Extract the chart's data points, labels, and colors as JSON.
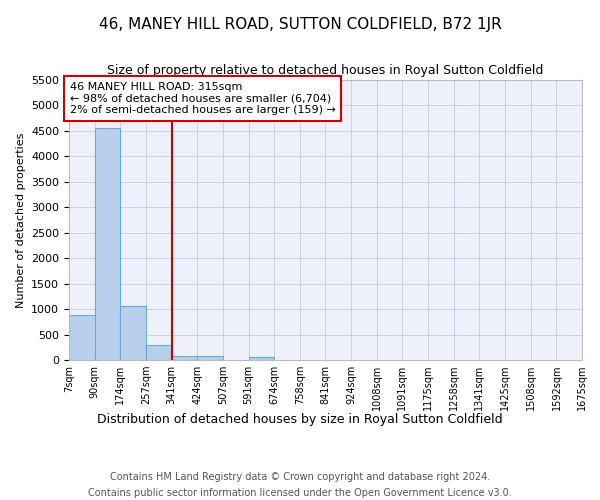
{
  "title": "46, MANEY HILL ROAD, SUTTON COLDFIELD, B72 1JR",
  "subtitle": "Size of property relative to detached houses in Royal Sutton Coldfield",
  "xlabel": "Distribution of detached houses by size in Royal Sutton Coldfield",
  "ylabel": "Number of detached properties",
  "footer_line1": "Contains HM Land Registry data © Crown copyright and database right 2024.",
  "footer_line2": "Contains public sector information licensed under the Open Government Licence v3.0.",
  "annotation_line1": "46 MANEY HILL ROAD: 315sqm",
  "annotation_line2": "← 98% of detached houses are smaller (6,704)",
  "annotation_line3": "2% of semi-detached houses are larger (159) →",
  "property_size": 315,
  "bar_edges": [
    7,
    90,
    174,
    257,
    341,
    424,
    507,
    591,
    674,
    758,
    841,
    924,
    1008,
    1091,
    1175,
    1258,
    1341,
    1425,
    1508,
    1592,
    1675
  ],
  "bar_heights": [
    880,
    4560,
    1060,
    285,
    80,
    75,
    0,
    55,
    0,
    0,
    0,
    0,
    0,
    0,
    0,
    0,
    0,
    0,
    0,
    0
  ],
  "bar_color": "#b8d0eb",
  "bar_edge_color": "#6aaad4",
  "vline_color": "#cc0000",
  "vline_x": 341,
  "ylim": [
    0,
    5500
  ],
  "yticks": [
    0,
    500,
    1000,
    1500,
    2000,
    2500,
    3000,
    3500,
    4000,
    4500,
    5000,
    5500
  ],
  "bg_color": "#eef1f9",
  "grid_color": "#c8cfe8"
}
